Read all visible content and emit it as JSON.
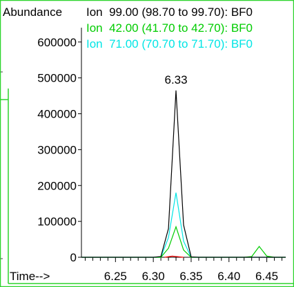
{
  "chart_data": {
    "type": "line",
    "ylabel": "Abundance",
    "xlabel": "Time-->",
    "xlim": [
      6.205,
      6.475
    ],
    "ylim": [
      0,
      640000
    ],
    "x_ticks": [
      6.25,
      6.3,
      6.35,
      6.4,
      6.45
    ],
    "x_tick_labels": [
      "6.25",
      "6.30",
      "6.35",
      "6.40",
      "6.45"
    ],
    "y_ticks": [
      0,
      100000,
      200000,
      300000,
      400000,
      500000,
      600000
    ],
    "y_tick_labels": [
      "0",
      "100000",
      "200000",
      "300000",
      "400000",
      "500000",
      "600000"
    ],
    "legend_position": "top",
    "grid": false,
    "annotations": [
      {
        "text": "6.33",
        "x": 6.33,
        "y": 495000
      }
    ],
    "series": [
      {
        "name": "Ion  99.00 (98.70 to 99.70): BF0",
        "color": "#000000",
        "x": [
          6.205,
          6.3,
          6.31,
          6.32,
          6.33,
          6.34,
          6.35,
          6.36,
          6.475
        ],
        "y": [
          0,
          0,
          2000,
          80000,
          465000,
          90000,
          1000,
          0,
          0
        ]
      },
      {
        "name": "Ion  42.00 (41.70 to 42.70): BF0",
        "color": "#00cc00",
        "x": [
          6.205,
          6.31,
          6.32,
          6.33,
          6.34,
          6.35,
          6.36,
          6.42,
          6.43,
          6.44,
          6.45,
          6.46,
          6.475
        ],
        "y": [
          0,
          0,
          25000,
          85000,
          20000,
          0,
          0,
          0,
          2000,
          30000,
          3000,
          0,
          0
        ]
      },
      {
        "name": "Ion  71.00 (70.70 to 71.70): BF0",
        "color": "#00e5e5",
        "x": [
          6.205,
          6.31,
          6.32,
          6.33,
          6.34,
          6.35,
          6.36,
          6.475
        ],
        "y": [
          0,
          0,
          55000,
          180000,
          45000,
          0,
          0,
          0
        ]
      },
      {
        "name": "",
        "color": "#ff0000",
        "x": [
          6.315,
          6.325,
          6.34
        ],
        "y": [
          0,
          3000,
          0
        ]
      }
    ]
  }
}
